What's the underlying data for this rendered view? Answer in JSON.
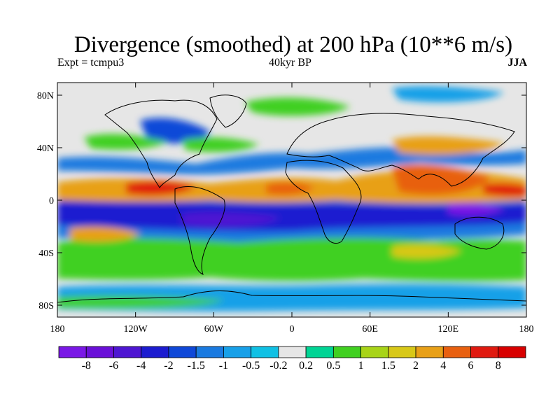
{
  "title": "Divergence (smoothed) at 200 hPa (10**6 m/s)",
  "subtitle_left": "Expt = tcmpu3",
  "subtitle_center": "40kyr BP",
  "subtitle_right": "JJA",
  "lat_ticks": [
    "80N",
    "40N",
    "0",
    "40S",
    "80S"
  ],
  "lon_ticks": [
    "180",
    "120W",
    "60W",
    "0",
    "60E",
    "120E",
    "180"
  ],
  "colorbar": {
    "labels": [
      "-8",
      "-6",
      "-4",
      "-2",
      "-1.5",
      "-1",
      "-0.5",
      "-0.2",
      "0.2",
      "0.5",
      "1",
      "1.5",
      "2",
      "4",
      "6",
      "8"
    ],
    "colors": [
      "#7a18e6",
      "#6a10d8",
      "#4e16d2",
      "#1c1cd0",
      "#0f48d8",
      "#1a7ae0",
      "#18a0e8",
      "#10c0e4",
      "#e6e6e6",
      "#00d494",
      "#40d020",
      "#a8d418",
      "#d8c818",
      "#e8a018",
      "#e86010",
      "#e01a10",
      "#d80000"
    ]
  },
  "map_colors": {
    "background": "#e6e6e6",
    "strong_negative": "#1c1cd0",
    "negative": "#0f48d8",
    "weak_negative": "#18a0e8",
    "weak_positive": "#40d020",
    "positive": "#e8a018",
    "strong_positive": "#e01a10"
  }
}
